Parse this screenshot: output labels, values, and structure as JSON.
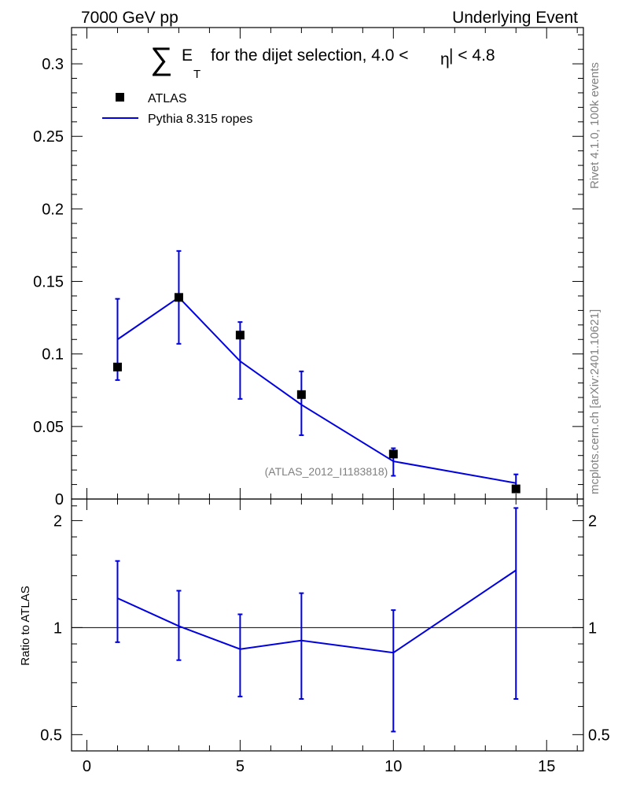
{
  "header": {
    "left": "7000 GeV pp",
    "right": "Underlying Event"
  },
  "side_labels": {
    "rivet": "Rivet 4.1.0,  100k events",
    "mcplots": "mcplots.cern.ch [arXiv:2401.10621]"
  },
  "chart_data": {
    "type": "scatter",
    "title": {
      "sigma": "∑",
      "e": "E",
      "sub": "T",
      "text": "for the dijet selection, 4.0 <",
      "eta": "η",
      "tail": "| < 4.8"
    },
    "watermark": "(ATLAS_2012_I1183818)",
    "legend": {
      "atlas": "ATLAS",
      "pythia": "Pythia 8.315 ropes",
      "position": "top-left"
    },
    "colors": {
      "mc": "#0000e0",
      "data": "#000000"
    },
    "xlim": [
      -0.5,
      16.2
    ],
    "main_ylim": [
      0,
      0.325
    ],
    "ratio_ylim": [
      0.45,
      2.3
    ],
    "x_ticks": [
      "0",
      "5",
      "10",
      "15"
    ],
    "x_tick_values": [
      0,
      5,
      10,
      15
    ],
    "main_y_ticks": [
      "0",
      "0.05",
      "0.1",
      "0.15",
      "0.2",
      "0.25",
      "0.3"
    ],
    "main_y_tick_values": [
      0,
      0.05,
      0.1,
      0.15,
      0.2,
      0.25,
      0.3
    ],
    "ratio_y_ticks": [
      "0.5",
      "1",
      "2"
    ],
    "ratio_y_tick_values": [
      0.5,
      1,
      2
    ],
    "ratio_ylabel": "Ratio to ATLAS",
    "series": [
      {
        "name": "ATLAS",
        "x": [
          1,
          3,
          5,
          7,
          10,
          14
        ],
        "y": [
          0.091,
          0.139,
          0.113,
          0.072,
          0.031,
          0.007
        ]
      },
      {
        "name": "Pythia 8.315 ropes",
        "x": [
          1,
          3,
          5,
          7,
          10,
          14
        ],
        "y": [
          0.11,
          0.139,
          0.095,
          0.065,
          0.026,
          0.011
        ],
        "err_low": [
          0.082,
          0.107,
          0.069,
          0.044,
          0.016,
          0.005
        ],
        "err_high": [
          0.138,
          0.171,
          0.122,
          0.088,
          0.035,
          0.017
        ]
      }
    ],
    "ratio": {
      "x": [
        1,
        3,
        5,
        7,
        10,
        14
      ],
      "y": [
        1.21,
        1.01,
        0.87,
        0.92,
        0.85,
        1.45
      ],
      "err_low": [
        0.91,
        0.81,
        0.64,
        0.63,
        0.51,
        0.63
      ],
      "err_high": [
        1.54,
        1.27,
        1.09,
        1.25,
        1.12,
        2.17
      ]
    }
  }
}
